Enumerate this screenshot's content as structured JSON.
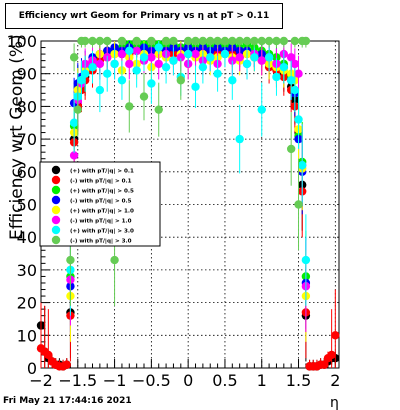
{
  "header": {
    "title": "Efficiency wrt Geom for Primary vs   η at pT > 0.11"
  },
  "footer": {
    "date": "Fri May 21 17:44:16 2021"
  },
  "chart_data": {
    "type": "scatter",
    "title": "Efficiency wrt Geom for Primary vs   η at pT > 0.11",
    "xlabel": "η",
    "ylabel": "Efficiency wrt Geom (%)",
    "xlim": [
      -2,
      2.05
    ],
    "ylim": [
      0,
      100
    ],
    "xticks": [
      -2,
      -1.5,
      -1,
      -0.5,
      0,
      0.5,
      1,
      1.5,
      2
    ],
    "xtick_labels": [
      "−2",
      "−1.5",
      "−1",
      "−0.5",
      "0",
      "0.5",
      "1",
      "1.5",
      "2"
    ],
    "yticks": [
      0,
      10,
      20,
      30,
      40,
      50,
      60,
      70,
      80,
      90,
      100
    ],
    "grid": true,
    "legend_position": "left-middle",
    "series": [
      {
        "name": "(+) with pT/|q| > 0.1",
        "color": "#000000",
        "x": [
          -2.0,
          -1.95,
          -1.9,
          -1.85,
          -1.8,
          -1.75,
          -1.7,
          -1.65,
          -1.6,
          -1.55,
          -1.5,
          -1.45,
          -1.4,
          -1.3,
          -1.2,
          -1.1,
          -1.0,
          -0.9,
          -0.8,
          -0.7,
          -0.6,
          -0.5,
          -0.4,
          -0.3,
          -0.2,
          -0.1,
          0.0,
          0.1,
          0.2,
          0.3,
          0.4,
          0.5,
          0.6,
          0.7,
          0.8,
          0.9,
          1.0,
          1.1,
          1.2,
          1.3,
          1.4,
          1.45,
          1.5,
          1.55,
          1.6,
          1.65,
          1.7,
          1.75,
          1.8,
          1.85,
          1.9,
          1.95,
          2.0
        ],
        "y": [
          13,
          5,
          3,
          2,
          1,
          1,
          0.5,
          1,
          17,
          70,
          81,
          86,
          89,
          92,
          95,
          96,
          97,
          96,
          97,
          98,
          97,
          98,
          97,
          98,
          97,
          98,
          97,
          96,
          97,
          98,
          97,
          98,
          97,
          96,
          97,
          96,
          95,
          93,
          92,
          90,
          86,
          82,
          72,
          56,
          16,
          0.5,
          0.5,
          0.5,
          1,
          1,
          2,
          3,
          3
        ]
      },
      {
        "name": "(-) with pT/|q| > 0.1",
        "color": "#ff0000",
        "x": [
          -2.0,
          -1.95,
          -1.9,
          -1.85,
          -1.8,
          -1.75,
          -1.7,
          -1.65,
          -1.6,
          -1.55,
          -1.5,
          -1.45,
          -1.4,
          -1.3,
          -1.2,
          -1.1,
          -1.0,
          -0.9,
          -0.8,
          -0.7,
          -0.6,
          -0.5,
          -0.4,
          -0.3,
          -0.2,
          -0.1,
          0.0,
          0.1,
          0.2,
          0.3,
          0.4,
          0.5,
          0.6,
          0.7,
          0.8,
          0.9,
          1.0,
          1.1,
          1.2,
          1.3,
          1.4,
          1.45,
          1.5,
          1.55,
          1.6,
          1.65,
          1.7,
          1.75,
          1.8,
          1.85,
          1.9,
          1.95,
          2.0
        ],
        "y": [
          6,
          5,
          4,
          2,
          1,
          0.5,
          0.5,
          1,
          16,
          69,
          80,
          85,
          88,
          91,
          94,
          95,
          96,
          97,
          96,
          97,
          96,
          97,
          96,
          97,
          96,
          97,
          96,
          97,
          96,
          97,
          96,
          97,
          96,
          95,
          96,
          95,
          94,
          92,
          91,
          89,
          85,
          80,
          71,
          54,
          17,
          0.5,
          0.5,
          0.5,
          1,
          1,
          3,
          4,
          10
        ]
      },
      {
        "name": "(+) with pT/|q| > 0.5",
        "color": "#00ee00",
        "x": [
          -1.6,
          -1.55,
          -1.5,
          -1.45,
          -1.4,
          -1.3,
          -1.2,
          -1.1,
          -1.0,
          -0.9,
          -0.8,
          -0.7,
          -0.6,
          -0.5,
          -0.4,
          -0.3,
          -0.2,
          -0.1,
          0.0,
          0.1,
          0.2,
          0.3,
          0.4,
          0.5,
          0.6,
          0.7,
          0.8,
          0.9,
          1.0,
          1.1,
          1.2,
          1.3,
          1.4,
          1.45,
          1.5,
          1.55,
          1.6
        ],
        "y": [
          28,
          74,
          86,
          88,
          90,
          93,
          96,
          97,
          98,
          98,
          99,
          98,
          99,
          98,
          99,
          98,
          99,
          98,
          99,
          98,
          99,
          98,
          99,
          98,
          99,
          98,
          99,
          98,
          97,
          96,
          95,
          93,
          89,
          85,
          71,
          63,
          28
        ]
      },
      {
        "name": "(-) with pT/|q| > 0.5",
        "color": "#0000ff",
        "x": [
          -1.6,
          -1.55,
          -1.5,
          -1.45,
          -1.4,
          -1.3,
          -1.2,
          -1.1,
          -1.0,
          -0.9,
          -0.8,
          -0.7,
          -0.6,
          -0.5,
          -0.4,
          -0.3,
          -0.2,
          -0.1,
          0.0,
          0.1,
          0.2,
          0.3,
          0.4,
          0.5,
          0.6,
          0.7,
          0.8,
          0.9,
          1.0,
          1.1,
          1.2,
          1.3,
          1.4,
          1.45,
          1.5,
          1.55,
          1.6
        ],
        "y": [
          25,
          81,
          87,
          89,
          92,
          95,
          96,
          97,
          98,
          97,
          98,
          97,
          98,
          97,
          98,
          97,
          98,
          97,
          98,
          97,
          98,
          97,
          98,
          97,
          98,
          97,
          97,
          96,
          96,
          95,
          93,
          92,
          88,
          84,
          70,
          60,
          26
        ]
      },
      {
        "name": "(+) with pT/|q| > 1.0",
        "color": "#ffff00",
        "x": [
          -1.6,
          -1.55,
          -1.5,
          -1.45,
          -1.4,
          -1.3,
          -1.2,
          -1.1,
          -1.0,
          -0.9,
          -0.8,
          -0.7,
          -0.6,
          -0.5,
          -0.4,
          -0.3,
          -0.2,
          -0.1,
          0.0,
          0.1,
          0.2,
          0.3,
          0.4,
          0.5,
          0.6,
          0.7,
          0.8,
          0.9,
          1.0,
          1.1,
          1.2,
          1.3,
          1.4,
          1.45,
          1.5,
          1.55,
          1.6
        ],
        "y": [
          22,
          72,
          85,
          88,
          91,
          94,
          96,
          95,
          96,
          91,
          95,
          93,
          96,
          92,
          96,
          95,
          94,
          96,
          93,
          95,
          96,
          94,
          95,
          96,
          95,
          94,
          96,
          95,
          94,
          93,
          92,
          91,
          90,
          88,
          73,
          61,
          22
        ]
      },
      {
        "name": "(-) with pT/|q| > 1.0",
        "color": "#ff00ff",
        "x": [
          -1.6,
          -1.55,
          -1.5,
          -1.45,
          -1.4,
          -1.3,
          -1.2,
          -1.1,
          -1.0,
          -0.9,
          -0.8,
          -0.7,
          -0.6,
          -0.5,
          -0.4,
          -0.3,
          -0.2,
          -0.1,
          0.0,
          0.1,
          0.2,
          0.3,
          0.4,
          0.5,
          0.6,
          0.7,
          0.8,
          0.9,
          1.0,
          1.1,
          1.2,
          1.3,
          1.4,
          1.45,
          1.5,
          1.55,
          1.6
        ],
        "y": [
          27,
          65,
          82,
          87,
          93,
          94,
          93,
          95,
          93,
          96,
          93,
          97,
          94,
          95,
          93,
          96,
          94,
          95,
          93,
          96,
          94,
          95,
          93,
          96,
          94,
          95,
          93,
          96,
          94,
          95,
          93,
          96,
          95,
          93,
          90,
          62,
          25
        ]
      },
      {
        "name": "(+) with pT/|q| > 3.0",
        "color": "#00ffff",
        "x": [
          -1.6,
          -1.55,
          -1.5,
          -1.45,
          -1.4,
          -1.3,
          -1.2,
          -1.1,
          -1.0,
          -0.9,
          -0.8,
          -0.7,
          -0.6,
          -0.5,
          -0.4,
          -0.3,
          -0.2,
          -0.1,
          0.0,
          0.1,
          0.2,
          0.3,
          0.4,
          0.5,
          0.6,
          0.7,
          0.8,
          0.9,
          1.0,
          1.1,
          1.2,
          1.3,
          1.4,
          1.45,
          1.5,
          1.55,
          1.6
        ],
        "y": [
          30,
          75,
          83,
          88,
          90,
          92,
          85,
          90,
          93,
          88,
          97,
          91,
          95,
          87,
          98,
          92,
          94,
          89,
          96,
          86,
          92,
          95,
          90,
          96,
          88,
          70,
          93,
          95,
          79,
          95,
          89,
          92,
          88,
          85,
          76,
          62,
          33
        ]
      },
      {
        "name": "(-) with pT/|q| > 3.0",
        "color": "#66cc55",
        "x": [
          -1.6,
          -1.55,
          -1.5,
          -1.45,
          -1.4,
          -1.3,
          -1.2,
          -1.1,
          -1.0,
          -0.9,
          -0.8,
          -0.7,
          -0.6,
          -0.5,
          -0.4,
          -0.3,
          -0.2,
          -0.1,
          0.0,
          0.1,
          0.2,
          0.3,
          0.4,
          0.5,
          0.6,
          0.7,
          0.8,
          0.9,
          1.0,
          1.1,
          1.2,
          1.3,
          1.4,
          1.45,
          1.5,
          1.55,
          1.6
        ],
        "y": [
          33,
          95,
          79,
          100,
          100,
          100,
          100,
          100,
          33,
          100,
          80,
          100,
          83,
          100,
          79,
          100,
          100,
          88,
          100,
          100,
          100,
          100,
          100,
          100,
          100,
          100,
          100,
          100,
          100,
          100,
          100,
          100,
          67,
          100,
          50,
          100,
          100
        ]
      }
    ]
  }
}
